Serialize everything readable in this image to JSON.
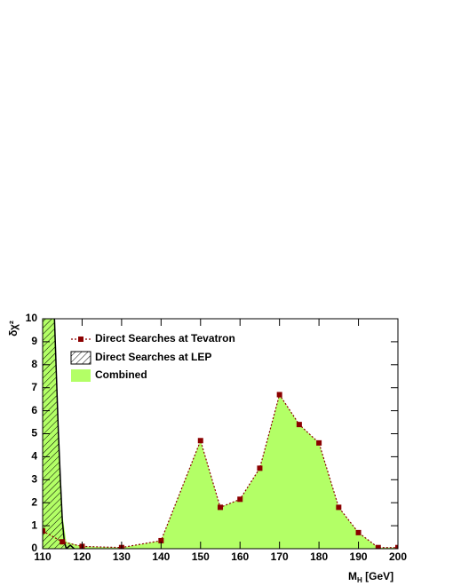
{
  "chart_data": {
    "type": "area",
    "y_label": "δχ²",
    "x_label": [
      "M",
      "H",
      " [GeV]"
    ],
    "xlim": [
      110,
      200
    ],
    "xticks": [
      110,
      120,
      130,
      140,
      150,
      160,
      170,
      180,
      190,
      200
    ],
    "ylim": [
      0,
      10
    ],
    "yticks": [
      0,
      1,
      2,
      3,
      4,
      5,
      6,
      7,
      8,
      9,
      10
    ],
    "legend": "upper left",
    "series": [
      {
        "name": "Direct Searches at Tevatron",
        "color": "#8b0000",
        "x": [
          110,
          115,
          120,
          130,
          140,
          150,
          155,
          160,
          165,
          170,
          175,
          180,
          185,
          190,
          195,
          200
        ],
        "values": [
          0.77,
          0.3,
          0.1,
          0.05,
          0.35,
          4.7,
          1.8,
          2.15,
          3.5,
          6.7,
          5.4,
          4.6,
          1.8,
          0.7,
          0.05,
          0.05
        ]
      },
      {
        "name": "Direct Searches at LEP",
        "color": "#000000",
        "x": [
          113,
          113.5,
          114,
          114.5,
          115,
          115.5,
          116,
          117,
          118
        ],
        "values": [
          10,
          7.5,
          5,
          3,
          1.2,
          0.3,
          0,
          0.15,
          0
        ]
      },
      {
        "name": "Combined",
        "color": "#b3ff66",
        "x": [
          110,
          113,
          114,
          115,
          116,
          120,
          130,
          140,
          150,
          155,
          160,
          165,
          170,
          175,
          180,
          185,
          190,
          195,
          200
        ],
        "values": [
          10,
          10,
          5,
          1.5,
          0.3,
          0.1,
          0.05,
          0.35,
          4.7,
          1.8,
          2.15,
          3.5,
          6.7,
          5.4,
          4.6,
          1.8,
          0.7,
          0.05,
          0.05
        ]
      }
    ]
  }
}
